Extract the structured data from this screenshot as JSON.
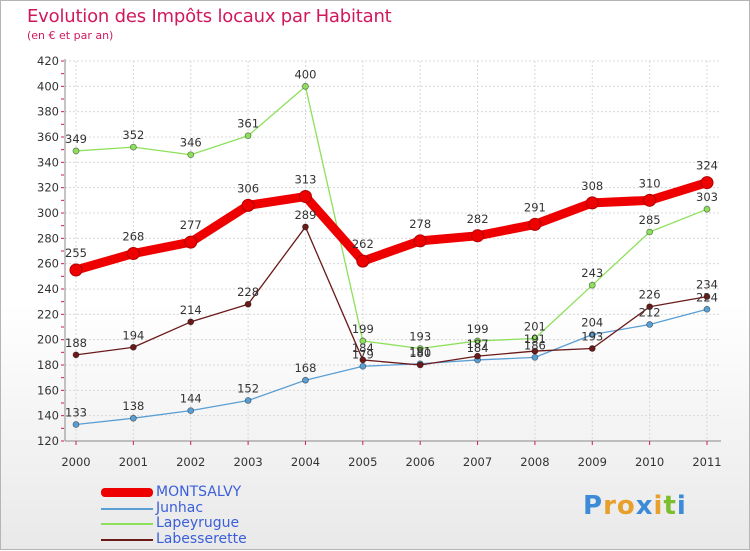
{
  "title": "Evolution des Impôts locaux par Habitant",
  "subtitle": "(en € et par an)",
  "logo": {
    "text": "Proxiti",
    "letters": [
      "P",
      "r",
      "o",
      "x",
      "i",
      "t",
      "i"
    ],
    "colors": [
      "#3d8bd6",
      "#e8a02c",
      "#e8a02c",
      "#3d8bd6",
      "#e8a02c",
      "#7bbf2f",
      "#3d8bd6"
    ]
  },
  "chart_data": {
    "type": "line",
    "title": "Evolution des Impôts locaux par Habitant",
    "subtitle": "(en € et par an)",
    "xlabel": "",
    "ylabel": "",
    "x": [
      "2000",
      "2001",
      "2002",
      "2003",
      "2004",
      "2005",
      "2006",
      "2007",
      "2008",
      "2009",
      "2010",
      "2011"
    ],
    "ylim": [
      120,
      420
    ],
    "yticks": [
      120,
      140,
      160,
      180,
      200,
      220,
      240,
      260,
      280,
      300,
      320,
      340,
      360,
      380,
      400,
      420
    ],
    "grid": true,
    "legend_position": "bottom-left",
    "series": [
      {
        "name": "MONTSALVY",
        "color": "#ee0000",
        "bold": true,
        "values": [
          255,
          268,
          277,
          306,
          313,
          262,
          278,
          282,
          291,
          308,
          310,
          324
        ],
        "labels": [
          "255",
          "268",
          "277",
          "306",
          "313",
          "262",
          "278",
          "282",
          "291",
          "308",
          "310",
          "324"
        ]
      },
      {
        "name": "Junhac",
        "color": "#5a9fd4",
        "bold": false,
        "values": [
          133,
          138,
          144,
          152,
          168,
          179,
          181,
          184,
          186,
          204,
          212,
          224
        ],
        "labels": [
          "133",
          "138",
          "144",
          "152",
          "168",
          "179",
          "181",
          "184",
          "186",
          "204",
          "212",
          "224"
        ]
      },
      {
        "name": "Lapeyrugue",
        "color": "#8ee05c",
        "bold": false,
        "values": [
          349,
          352,
          346,
          361,
          400,
          199,
          193,
          199,
          201,
          243,
          285,
          303
        ],
        "labels": [
          "349",
          "352",
          "346",
          "361",
          "400",
          "199",
          "193",
          "199",
          "201",
          "243",
          "285",
          "303"
        ]
      },
      {
        "name": "Labesserette",
        "color": "#6b1a1a",
        "bold": false,
        "values": [
          188,
          194,
          214,
          228,
          289,
          184,
          180,
          187,
          191,
          193,
          226,
          234
        ],
        "labels": [
          "188",
          "194",
          "214",
          "228",
          "289",
          "184",
          "180",
          "187",
          "191",
          "193",
          "226",
          "234"
        ]
      }
    ]
  }
}
